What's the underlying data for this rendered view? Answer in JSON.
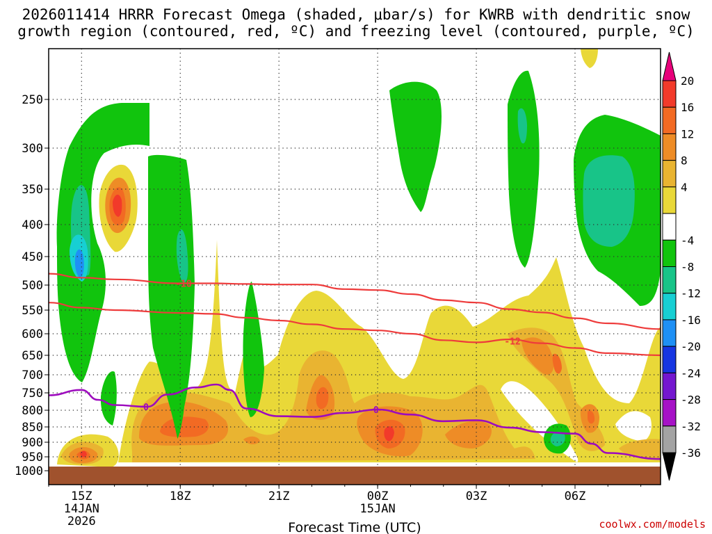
{
  "title_line1": "2026011414 HRRR Forecast Omega (shaded, μbar/s) for KWRB with dendritic snow",
  "title_line2": "growth region (contoured, red, ºC) and freezing level (contoured, purple, ºC)",
  "chart_data": {
    "type": "time-height cross section",
    "xlabel": "Forecast Time (UTC)",
    "credit": "coolwx.com/models",
    "x_ticks": [
      {
        "hour": 0,
        "label": "15Z",
        "sub1": "14JAN",
        "sub2": "2026"
      },
      {
        "hour": 3,
        "label": "18Z",
        "sub1": "",
        "sub2": ""
      },
      {
        "hour": 6,
        "label": "21Z",
        "sub1": "",
        "sub2": ""
      },
      {
        "hour": 9,
        "label": "00Z",
        "sub1": "15JAN",
        "sub2": ""
      },
      {
        "hour": 12,
        "label": "03Z",
        "sub1": "",
        "sub2": ""
      },
      {
        "hour": 15,
        "label": "06Z",
        "sub1": "",
        "sub2": ""
      }
    ],
    "xlim_hours": [
      -1,
      17.6
    ],
    "y_levels_hPa": [
      250,
      300,
      350,
      400,
      450,
      500,
      550,
      600,
      650,
      700,
      750,
      800,
      850,
      900,
      950,
      1000
    ],
    "ylim_hPa": [
      200,
      1000
    ],
    "colorbar": {
      "labels": [
        "20",
        "16",
        "12",
        "8",
        "4",
        "-4",
        "-8",
        "-12",
        "-16",
        "-20",
        "-24",
        "-28",
        "-32",
        "-36"
      ],
      "bins": [
        {
          "min": 20,
          "max": 24,
          "color": "#e8007a"
        },
        {
          "min": 16,
          "max": 20,
          "color": "#f23a2a"
        },
        {
          "min": 12,
          "max": 16,
          "color": "#f26a23"
        },
        {
          "min": 8,
          "max": 12,
          "color": "#ee8c26"
        },
        {
          "min": 4,
          "max": 8,
          "color": "#e9b431"
        },
        {
          "min": 0,
          "max": 4,
          "color": "#e9d838"
        },
        {
          "min": -4,
          "max": 4,
          "color": "#ffffff"
        },
        {
          "min": -8,
          "max": -4,
          "color": "#11c40d"
        },
        {
          "min": -12,
          "max": -8,
          "color": "#18c488"
        },
        {
          "min": -16,
          "max": -12,
          "color": "#17cfd3"
        },
        {
          "min": -20,
          "max": -16,
          "color": "#1e90f5"
        },
        {
          "min": -24,
          "max": -20,
          "color": "#1736e2"
        },
        {
          "min": -28,
          "max": -24,
          "color": "#7417cf"
        },
        {
          "min": -32,
          "max": -28,
          "color": "#a612c6"
        },
        {
          "min": -36,
          "max": -32,
          "color": "#a3a3a3"
        },
        {
          "min": -40,
          "max": -36,
          "color": "#000000"
        }
      ]
    },
    "contours": [
      {
        "name": "-18C isotherm",
        "label": "-18",
        "color": "#ee3b3b",
        "points": [
          [
            -1,
            480
          ],
          [
            0,
            487
          ],
          [
            1,
            490
          ],
          [
            3,
            497
          ],
          [
            4,
            497
          ],
          [
            5,
            498
          ],
          [
            6,
            499
          ],
          [
            7,
            499
          ],
          [
            8,
            508
          ],
          [
            9,
            510
          ],
          [
            10,
            518
          ],
          [
            11,
            530
          ],
          [
            12,
            535
          ],
          [
            13,
            548
          ],
          [
            14,
            555
          ],
          [
            15,
            567
          ],
          [
            16,
            578
          ],
          [
            17.6,
            590
          ]
        ]
      },
      {
        "name": "-12C isotherm",
        "label": "-12",
        "color": "#ee3b3b",
        "points": [
          [
            -1,
            535
          ],
          [
            0,
            545
          ],
          [
            1,
            550
          ],
          [
            3,
            556
          ],
          [
            4,
            558
          ],
          [
            5,
            566
          ],
          [
            6,
            572
          ],
          [
            7,
            580
          ],
          [
            8,
            590
          ],
          [
            9,
            593
          ],
          [
            10,
            600
          ],
          [
            11,
            615
          ],
          [
            12,
            620
          ],
          [
            13,
            613
          ],
          [
            14,
            622
          ],
          [
            15,
            633
          ],
          [
            16,
            645
          ],
          [
            17.6,
            650
          ]
        ]
      },
      {
        "name": "freezing level",
        "label": "0",
        "color": "#9d0bbd",
        "points": [
          [
            -1,
            757
          ],
          [
            0,
            742
          ],
          [
            0.5,
            770
          ],
          [
            1,
            785
          ],
          [
            2,
            790
          ],
          [
            2.6,
            755
          ],
          [
            3.5,
            735
          ],
          [
            4.1,
            727
          ],
          [
            4.5,
            742
          ],
          [
            5,
            795
          ],
          [
            6,
            818
          ],
          [
            7,
            820
          ],
          [
            8,
            808
          ],
          [
            9,
            798
          ],
          [
            10,
            813
          ],
          [
            11,
            833
          ],
          [
            12,
            830
          ],
          [
            13,
            852
          ],
          [
            14,
            867
          ],
          [
            15,
            872
          ],
          [
            15.5,
            905
          ],
          [
            16,
            937
          ],
          [
            17.6,
            958
          ]
        ]
      }
    ],
    "contour_labels": [
      {
        "label": "-18",
        "hour": 3.1,
        "hPa": 497
      },
      {
        "label": "-12",
        "hour": 13.1,
        "hPa": 617
      },
      {
        "label": "0",
        "hour": 1.96,
        "hPa": 790
      },
      {
        "label": "0",
        "hour": 8.95,
        "hPa": 798
      }
    ],
    "ground": "surface below 1000 hPa",
    "surface_hPa": 985
  }
}
